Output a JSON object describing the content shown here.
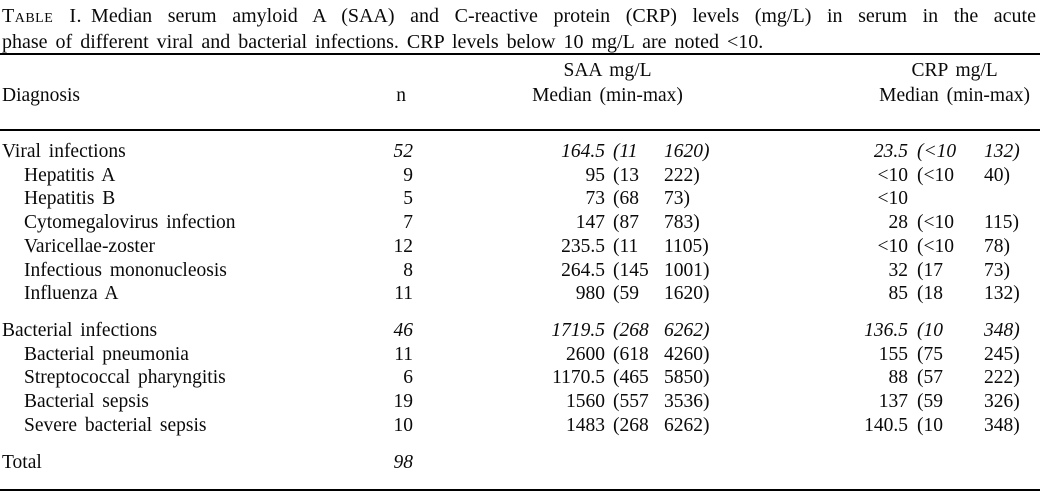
{
  "caption": {
    "label": "Table I.",
    "line1": "Median serum amyloid A (SAA) and C-reactive protein (CRP) levels (mg/L) in serum in the acute",
    "line2": "phase of different viral and bacterial infections. CRP levels below 10 mg/L are noted <10."
  },
  "table": {
    "headers": {
      "diagnosis": "Diagnosis",
      "n": "n",
      "saa_title": "SAA mg/L",
      "saa_sub": "Median (min-max)",
      "crp_title": "CRP mg/L",
      "crp_sub": "Median (min-max)"
    },
    "rows": [
      {
        "label": "Viral infections",
        "summary": true,
        "indent": false,
        "gap": false,
        "n": "52",
        "saa_median": "164.5",
        "saa_min": "(11",
        "saa_max": "1620)",
        "crp_median": "23.5",
        "crp_min": "(<10",
        "crp_max": "132)"
      },
      {
        "label": "Hepatitis A",
        "summary": false,
        "indent": true,
        "gap": false,
        "n": "9",
        "saa_median": "95",
        "saa_min": "(13",
        "saa_max": "222)",
        "crp_median": "<10",
        "crp_min": "(<10",
        "crp_max": "40)"
      },
      {
        "label": "Hepatitis B",
        "summary": false,
        "indent": true,
        "gap": false,
        "n": "5",
        "saa_median": "73",
        "saa_min": "(68",
        "saa_max": "73)",
        "crp_median": "<10",
        "crp_min": "",
        "crp_max": ""
      },
      {
        "label": "Cytomegalovirus infection",
        "summary": false,
        "indent": true,
        "gap": false,
        "n": "7",
        "saa_median": "147",
        "saa_min": "(87",
        "saa_max": "783)",
        "crp_median": "28",
        "crp_min": "(<10",
        "crp_max": "115)"
      },
      {
        "label": "Varicellae-zoster",
        "summary": false,
        "indent": true,
        "gap": false,
        "n": "12",
        "saa_median": "235.5",
        "saa_min": "(11",
        "saa_max": "1105)",
        "crp_median": "<10",
        "crp_min": "(<10",
        "crp_max": "78)"
      },
      {
        "label": "Infectious mononucleosis",
        "summary": false,
        "indent": true,
        "gap": false,
        "n": "8",
        "saa_median": "264.5",
        "saa_min": "(145",
        "saa_max": "1001)",
        "crp_median": "32",
        "crp_min": "(17",
        "crp_max": "73)"
      },
      {
        "label": "Influenza A",
        "summary": false,
        "indent": true,
        "gap": false,
        "n": "11",
        "saa_median": "980",
        "saa_min": "(59",
        "saa_max": "1620)",
        "crp_median": "85",
        "crp_min": "(18",
        "crp_max": "132)"
      },
      {
        "label": "Bacterial infections",
        "summary": true,
        "indent": false,
        "gap": true,
        "n": "46",
        "saa_median": "1719.5",
        "saa_min": "(268",
        "saa_max": "6262)",
        "crp_median": "136.5",
        "crp_min": "(10",
        "crp_max": "348)"
      },
      {
        "label": "Bacterial pneumonia",
        "summary": false,
        "indent": true,
        "gap": false,
        "n": "11",
        "saa_median": "2600",
        "saa_min": "(618",
        "saa_max": "4260)",
        "crp_median": "155",
        "crp_min": "(75",
        "crp_max": "245)"
      },
      {
        "label": "Streptococcal pharyngitis",
        "summary": false,
        "indent": true,
        "gap": false,
        "n": "6",
        "saa_median": "1170.5",
        "saa_min": "(465",
        "saa_max": "5850)",
        "crp_median": "88",
        "crp_min": "(57",
        "crp_max": "222)"
      },
      {
        "label": "Bacterial sepsis",
        "summary": false,
        "indent": true,
        "gap": false,
        "n": "19",
        "saa_median": "1560",
        "saa_min": "(557",
        "saa_max": "3536)",
        "crp_median": "137",
        "crp_min": "(59",
        "crp_max": "326)"
      },
      {
        "label": "Severe bacterial sepsis",
        "summary": false,
        "indent": true,
        "gap": false,
        "n": "10",
        "saa_median": "1483",
        "saa_min": "(268",
        "saa_max": "6262)",
        "crp_median": "140.5",
        "crp_min": "(10",
        "crp_max": "348)"
      },
      {
        "label": "Total",
        "summary": true,
        "indent": false,
        "gap": true,
        "n": "98",
        "saa_median": "",
        "saa_min": "",
        "saa_max": "",
        "crp_median": "",
        "crp_min": "",
        "crp_max": ""
      }
    ]
  }
}
